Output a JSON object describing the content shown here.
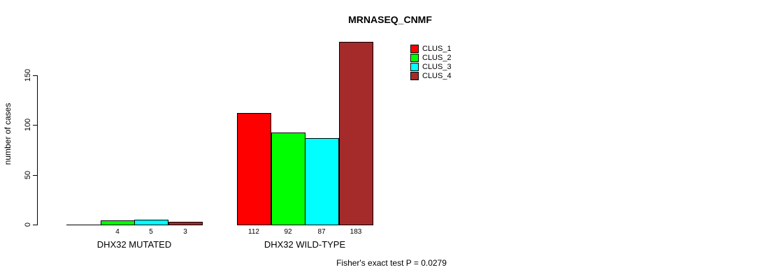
{
  "title": "MRNASEQ_CNMF",
  "y_axis": {
    "label": "number of cases",
    "ticks": [
      "0",
      "50",
      "100",
      "150"
    ]
  },
  "footer": "Fisher's exact test P = 0.0279",
  "chart_data": {
    "type": "bar",
    "title": "MRNASEQ_CNMF",
    "xlabel": "",
    "ylabel": "number of cases",
    "categories": [
      "DHX32 MUTATED",
      "DHX32 WILD-TYPE"
    ],
    "series": [
      {
        "name": "CLUS_1",
        "color": "#FF0000",
        "values": [
          0,
          112
        ]
      },
      {
        "name": "CLUS_2",
        "color": "#00FF00",
        "values": [
          4,
          92
        ]
      },
      {
        "name": "CLUS_3",
        "color": "#00FFFF",
        "values": [
          5,
          87
        ]
      },
      {
        "name": "CLUS_4",
        "color": "#A52A2A",
        "values": [
          3,
          183
        ]
      }
    ],
    "bar_value_labels_shown": true,
    "zero_value_labels_hidden": true,
    "yticks": [
      0,
      50,
      100,
      150
    ],
    "ylim": [
      0,
      185
    ],
    "grid": false,
    "legend_position": "top-right",
    "legend_entries": [
      "CLUS_1",
      "CLUS_2",
      "CLUS_3",
      "CLUS_4"
    ],
    "annotation": "Fisher's exact test P = 0.0279"
  }
}
